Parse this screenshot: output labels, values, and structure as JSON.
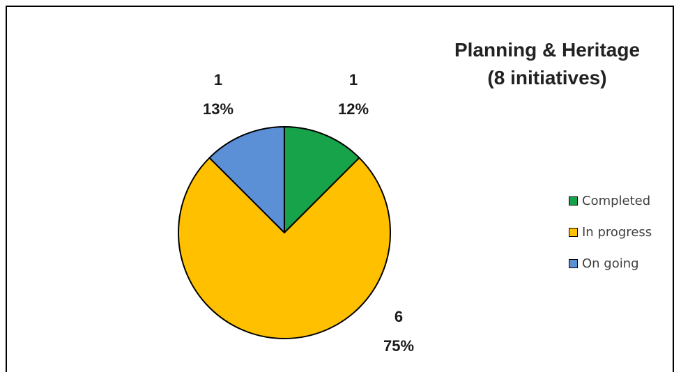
{
  "chart_data": {
    "type": "pie",
    "title_line1": "Planning & Heritage",
    "title_line2": "(8 initiatives)",
    "categories": [
      "Completed",
      "In progress",
      "On going"
    ],
    "values": [
      1,
      6,
      1
    ],
    "percent_labels": [
      "12%",
      "75%",
      "13%"
    ],
    "colors": [
      "#16a34a",
      "#ffc000",
      "#5b8fd6"
    ],
    "legend_placement": "right",
    "start_angle_deg": 0,
    "direction": "clockwise"
  }
}
